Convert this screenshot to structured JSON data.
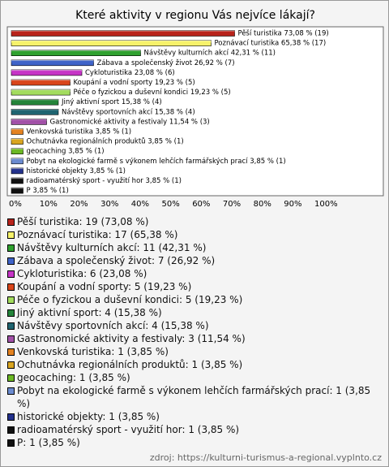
{
  "chart_data": {
    "type": "bar",
    "orientation": "horizontal",
    "title": "Které aktivity v regionu Vás nejvíce lákají?",
    "categories": [
      "Pěší turistika",
      "Poznávací turistika",
      "Návštěvy kulturních akcí",
      "Zábava a společenský život",
      "Cykloturistika",
      "Koupání a vodní sporty",
      "Péče o fyzickou a duševní kondici",
      "Jiný aktivní sport",
      "Návštěvy sportovních akcí",
      "Gastronomické aktivity a festivaly",
      "Venkovská turistika",
      "Ochutnávka regionálních produktů",
      "geocaching",
      "Pobyt na ekologické farmě s výkonem lehčích farmářských prací",
      "historické objekty",
      "radioamatérský sport - využití hor",
      "P"
    ],
    "values": [
      73.08,
      65.38,
      42.31,
      26.92,
      23.08,
      19.23,
      19.23,
      15.38,
      15.38,
      11.54,
      3.85,
      3.85,
      3.85,
      3.85,
      3.85,
      3.85,
      3.85
    ],
    "value_labels": [
      "Pěší turistika 73,08 % (19)",
      "Poznávací turistika 65,38 % (17)",
      "Návštěvy kulturních akcí 42,31 % (11)",
      "Zábava a společenský život 26,92 % (7)",
      "Cykloturistika 23,08 % (6)",
      "Koupání a vodní sporty 19,23 % (5)",
      "Péče o fyzickou a duševní kondici 19,23 % (5)",
      "Jiný aktivní sport 15,38 % (4)",
      "Návštěvy sportovních akcí 15,38 % (4)",
      "Gastronomické aktivity a festivaly 11,54 % (3)",
      "Venkovská turistika 3,85 % (1)",
      "Ochutnávka regionálních produktů 3,85 % (1)",
      "geocaching 3,85 % (1)",
      "Pobyt na ekologické farmě s výkonem lehčích farmářských prací 3,85 % (1)",
      "historické objekty 3,85 % (1)",
      "radioamatérský sport - využití hor 3,85 % (1)",
      "P 3,85 % (1)"
    ],
    "legend_labels": [
      "Pěší turistika: 19 (73,08 %)",
      "Poznávací turistika: 17 (65,38 %)",
      "Návštěvy kulturních akcí: 11 (42,31 %)",
      "Zábava a společenský život: 7 (26,92 %)",
      "Cykloturistika: 6 (23,08 %)",
      "Koupání a vodní sporty: 5 (19,23 %)",
      "Péče o fyzickou a duševní kondici: 5 (19,23 %)",
      "Jiný aktivní sport: 4 (15,38 %)",
      "Návštěvy sportovních akcí: 4 (15,38 %)",
      "Gastronomické aktivity a festivaly: 3 (11,54 %)",
      "Venkovská turistika: 1 (3,85 %)",
      "Ochutnávka regionálních produktů: 1 (3,85 %)",
      "geocaching: 1 (3,85 %)",
      "Pobyt na ekologické farmě s výkonem lehčích farmářských prací: 1 (3,85 %)",
      "historické objekty: 1 (3,85 %)",
      "radioamatérský sport - využití hor: 1 (3,85 %)",
      "P: 1 (3,85 %)"
    ],
    "colors": [
      "#b8231b",
      "#f6f26a",
      "#2fa12f",
      "#3f63c8",
      "#c634c6",
      "#d9451a",
      "#a3dc5e",
      "#24843a",
      "#1f6470",
      "#a251a8",
      "#e48220",
      "#d9a521",
      "#6bb824",
      "#6b8bd0",
      "#23318c",
      "#111111",
      "#111111"
    ],
    "xlim": [
      0,
      100
    ],
    "xticks": [
      {
        "value": 0,
        "label": "0%"
      },
      {
        "value": 10,
        "label": "10%"
      },
      {
        "value": 20,
        "label": "20%"
      },
      {
        "value": 30,
        "label": "30%"
      },
      {
        "value": 40,
        "label": "40%"
      },
      {
        "value": 50,
        "label": "50%"
      },
      {
        "value": 60,
        "label": "60%"
      },
      {
        "value": 70,
        "label": "70%"
      },
      {
        "value": 80,
        "label": "80%"
      },
      {
        "value": 90,
        "label": "90%"
      },
      {
        "value": 100,
        "label": "100%"
      }
    ],
    "grid": false,
    "source": "zdroj: https://kulturni-turismus-a-regional.vyplnto.cz"
  }
}
